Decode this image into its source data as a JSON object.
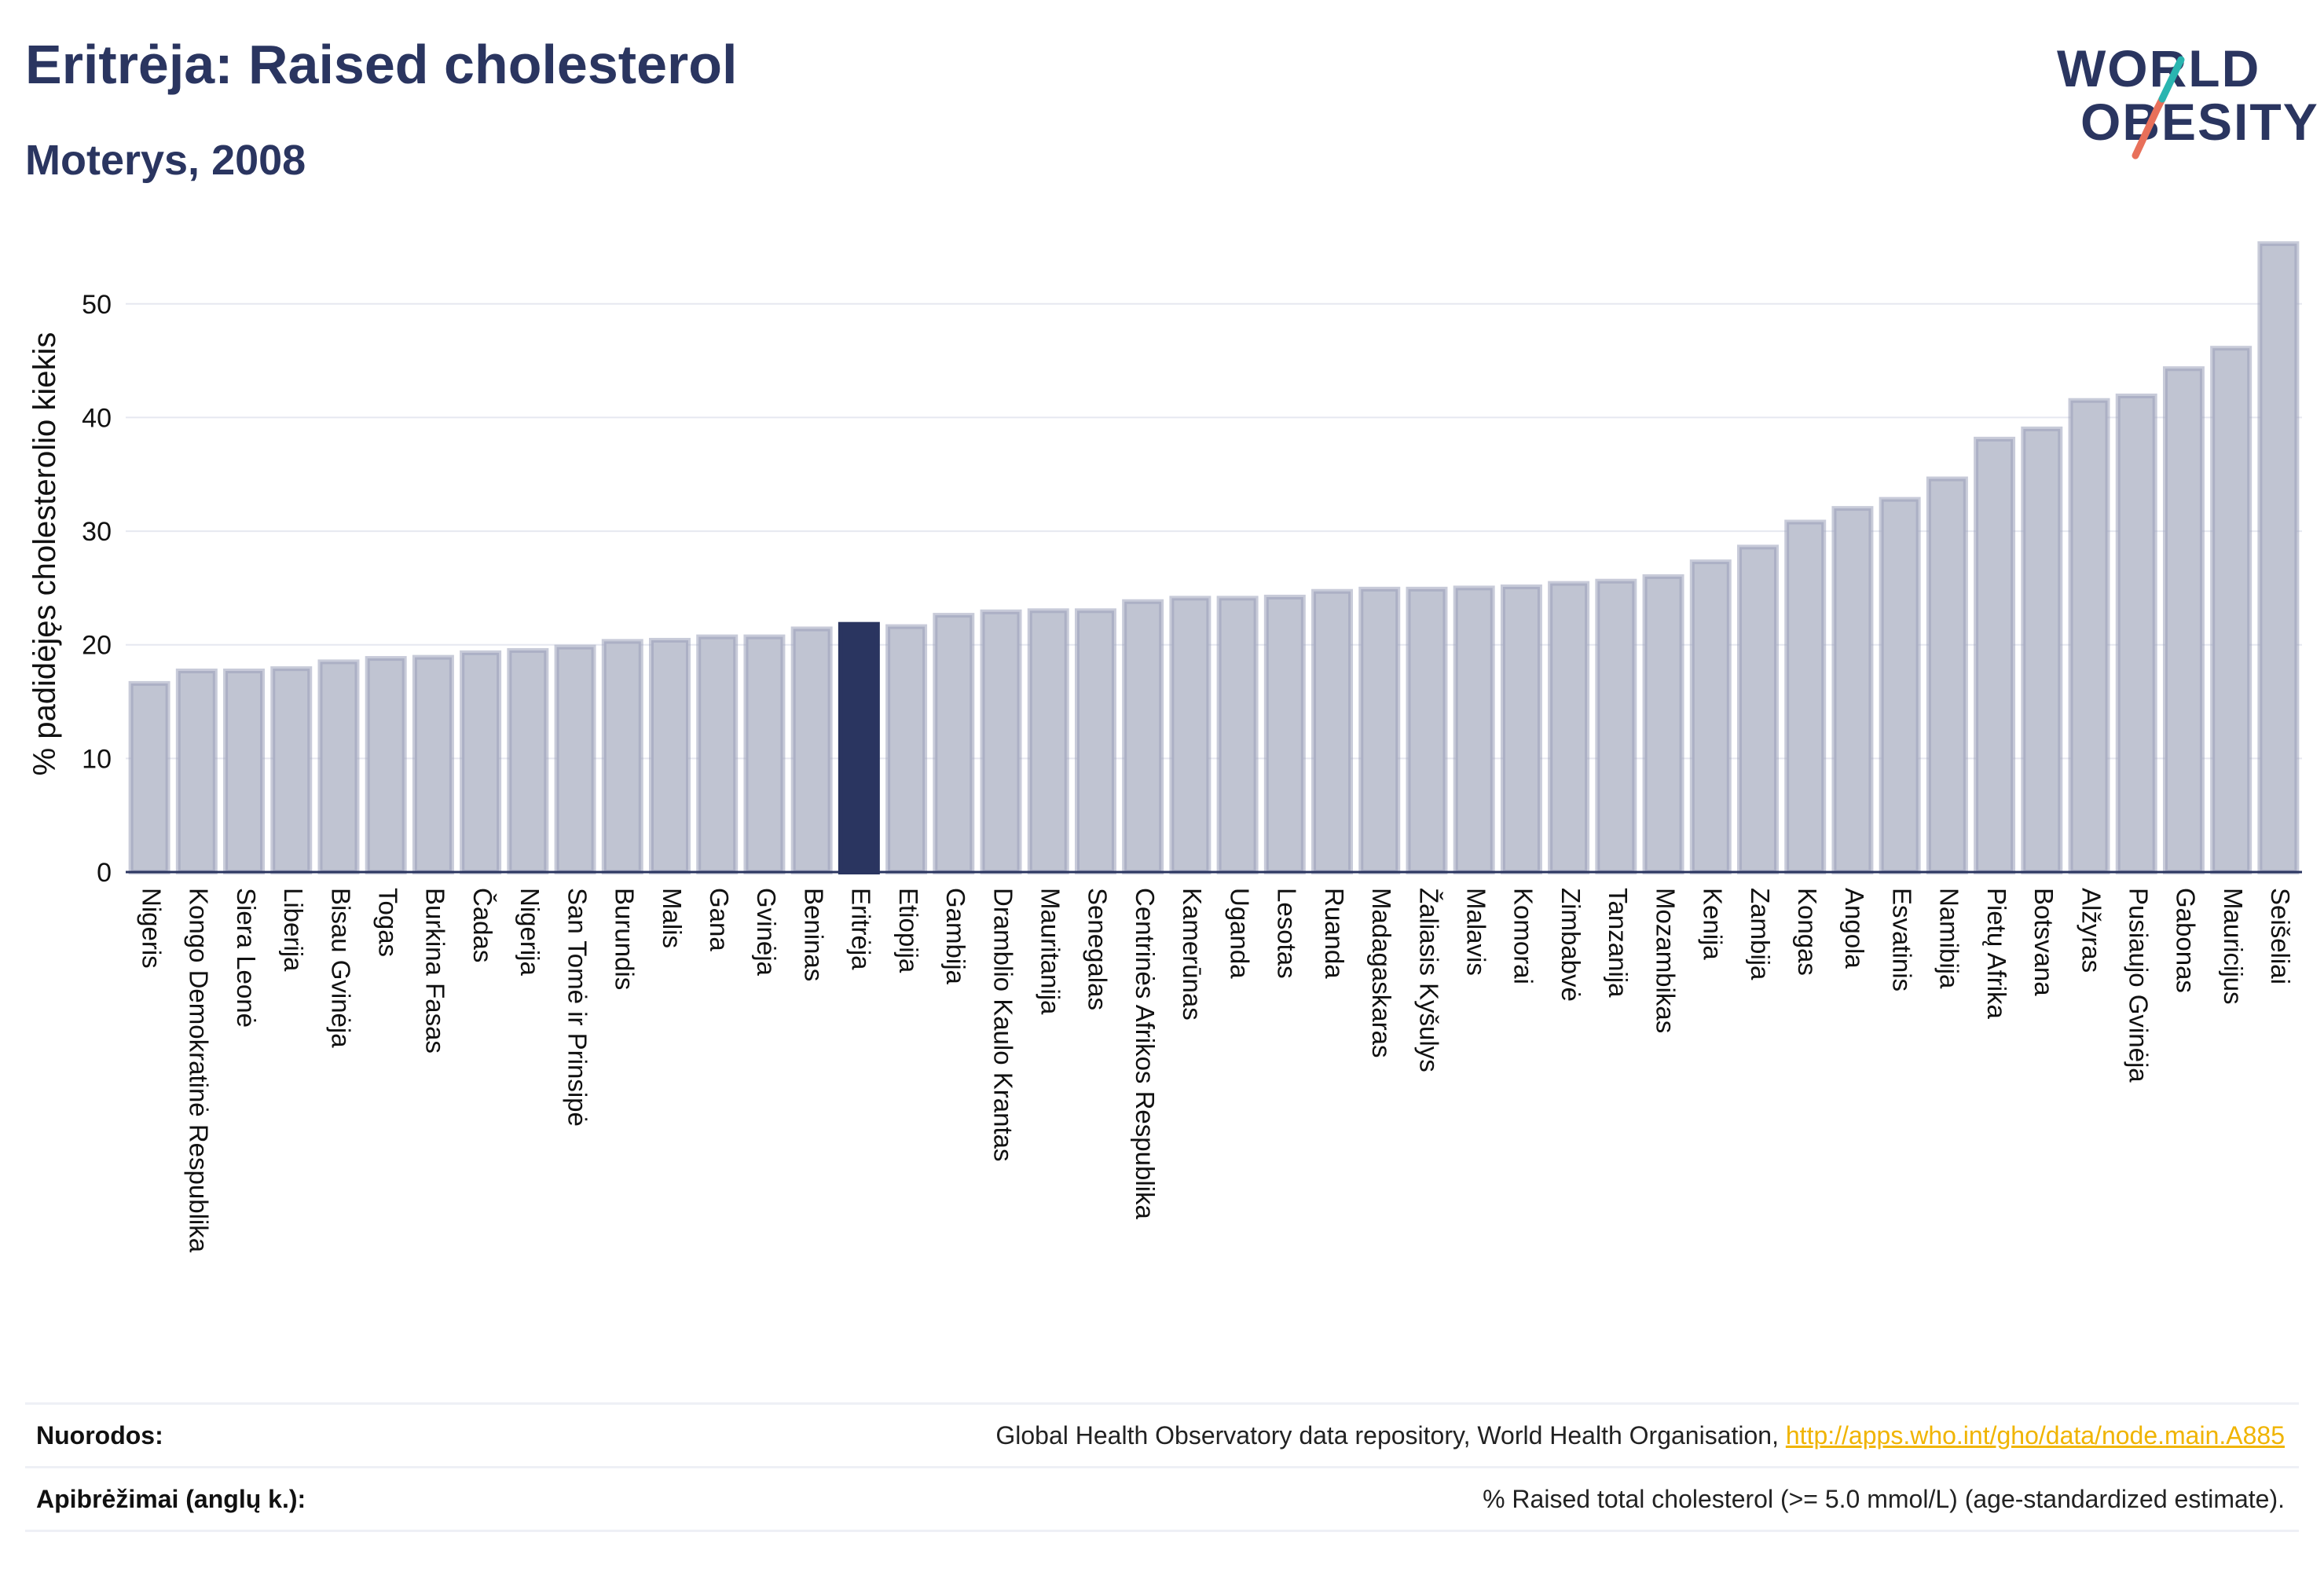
{
  "header": {
    "title": "Eritrėja: Raised cholesterol",
    "subtitle": "Moterys, 2008"
  },
  "logo": {
    "line1": "WORLD",
    "line2": "OBESITY",
    "slash_colors": [
      "#2ab5b0",
      "#e8705a"
    ]
  },
  "colors": {
    "bar": "#c0c4d2",
    "bar_stroke": "#9aa0ba",
    "highlight": "#2a3560",
    "axis": "#2a3560",
    "grid": "#e6e8f0",
    "text": "#2a3560"
  },
  "chart_data": {
    "type": "bar",
    "title": "",
    "xlabel": "",
    "ylabel": "% padidėjęs cholesterolio kiekis",
    "ylim": [
      0,
      56
    ],
    "yticks": [
      0,
      10,
      20,
      30,
      40,
      50
    ],
    "grid": true,
    "highlight": "Eritrėja",
    "categories": [
      "Nigeris",
      "Kongo Demokratinė Respublika",
      "Siera Leonė",
      "Liberija",
      "Bisau Gvinėja",
      "Togas",
      "Burkina Fasas",
      "Čadas",
      "Nigerija",
      "San Tomė ir Prinsipė",
      "Burundis",
      "Malis",
      "Gana",
      "Gvinėja",
      "Beninas",
      "Eritrėja",
      "Etiopija",
      "Gambija",
      "Dramblio Kaulo Krantas",
      "Mauritanija",
      "Senegalas",
      "Centrinės Afrikos Respublika",
      "Kamerūnas",
      "Uganda",
      "Lesotas",
      "Ruanda",
      "Madagaskaras",
      "Žaliasis Kyšulys",
      "Malavis",
      "Komorai",
      "Zimbabvė",
      "Tanzanija",
      "Mozambikas",
      "Kenija",
      "Zambija",
      "Kongas",
      "Angola",
      "Esvatinis",
      "Namibija",
      "Pietų Afrika",
      "Botsvana",
      "Alžyras",
      "Pusiaujo Gvinėja",
      "Gabonas",
      "Mauricijus",
      "Seišeliai"
    ],
    "values": [
      16.6,
      17.7,
      17.7,
      17.9,
      18.5,
      18.8,
      18.9,
      19.3,
      19.5,
      19.8,
      20.3,
      20.4,
      20.7,
      20.7,
      21.4,
      21.8,
      21.6,
      22.6,
      22.9,
      23.0,
      23.0,
      23.8,
      24.1,
      24.1,
      24.2,
      24.7,
      24.9,
      24.9,
      25.0,
      25.1,
      25.4,
      25.6,
      26.0,
      27.3,
      28.6,
      30.8,
      32.0,
      32.8,
      34.6,
      38.1,
      39.0,
      41.5,
      41.9,
      44.3,
      46.1,
      55.3
    ]
  },
  "footer": {
    "sources_label": "Nuorodos:",
    "sources_text": "Global Health Observatory data repository, World Health Organisation, ",
    "sources_link": "http://apps.who.int/gho/data/node.main.A885",
    "definitions_label": "Apibrėžimai (anglų k.):",
    "definitions_text": "% Raised total cholesterol (>= 5.0 mmol/L) (age-standardized estimate)."
  }
}
